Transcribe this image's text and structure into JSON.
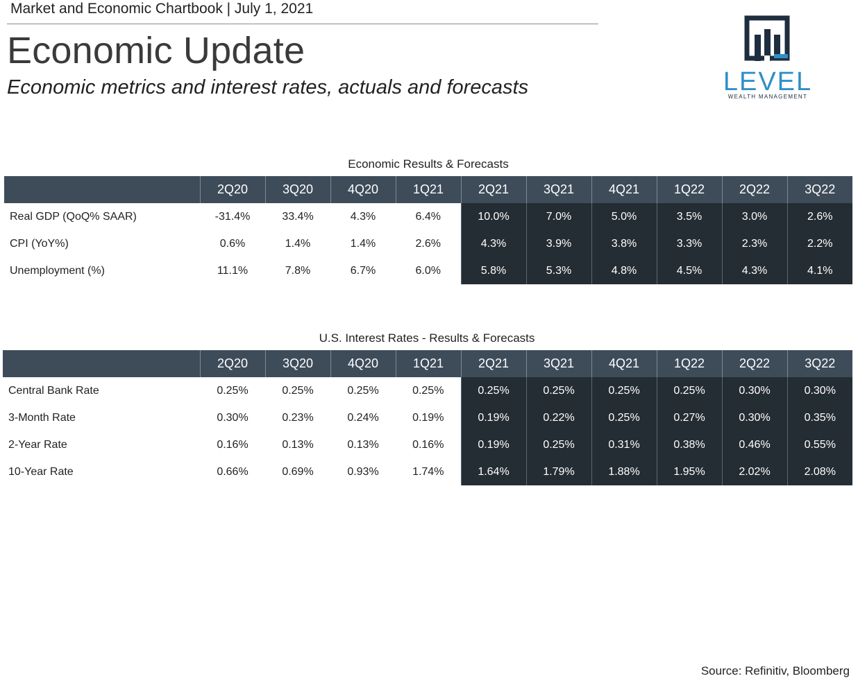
{
  "header": {
    "chartbook_label": "Market and Economic Chartbook | July 1, 2021",
    "title": "Economic Update",
    "subtitle": "Economic metrics and interest rates, actuals and forecasts"
  },
  "logo": {
    "wordmark": "LEVEL",
    "tagline": "WEALTH MANAGEMENT",
    "color": "#2f8fc7",
    "icon": "bar-chart-logo-icon"
  },
  "colors": {
    "header_bg": "#3e4c5a",
    "forecast_bg": "#252d34",
    "text": "#222222"
  },
  "tables": {
    "economic": {
      "title": "Economic Results & Forecasts",
      "columns": [
        "2Q20",
        "3Q20",
        "4Q20",
        "1Q21",
        "2Q21",
        "3Q21",
        "4Q21",
        "1Q22",
        "2Q22",
        "3Q22"
      ],
      "rows": [
        {
          "label": "Real GDP (QoQ% SAAR)",
          "values": [
            "-31.4%",
            "33.4%",
            "4.3%",
            "6.4%",
            "10.0%",
            "7.0%",
            "5.0%",
            "3.5%",
            "3.0%",
            "2.6%"
          ]
        },
        {
          "label": "CPI (YoY%)",
          "values": [
            "0.6%",
            "1.4%",
            "1.4%",
            "2.6%",
            "4.3%",
            "3.9%",
            "3.8%",
            "3.3%",
            "2.3%",
            "2.2%"
          ]
        },
        {
          "label": "Unemployment (%)",
          "values": [
            "11.1%",
            "7.8%",
            "6.7%",
            "6.0%",
            "5.8%",
            "5.3%",
            "4.8%",
            "4.5%",
            "4.3%",
            "4.1%"
          ]
        }
      ]
    },
    "rates": {
      "title": "U.S. Interest Rates - Results & Forecasts",
      "columns": [
        "2Q20",
        "3Q20",
        "4Q20",
        "1Q21",
        "2Q21",
        "3Q21",
        "4Q21",
        "1Q22",
        "2Q22",
        "3Q22"
      ],
      "rows": [
        {
          "label": "Central Bank Rate",
          "values": [
            "0.25%",
            "0.25%",
            "0.25%",
            "0.25%",
            "0.25%",
            "0.25%",
            "0.25%",
            "0.25%",
            "0.30%",
            "0.30%"
          ]
        },
        {
          "label": "3-Month Rate",
          "values": [
            "0.30%",
            "0.23%",
            "0.24%",
            "0.19%",
            "0.19%",
            "0.22%",
            "0.25%",
            "0.27%",
            "0.30%",
            "0.35%"
          ]
        },
        {
          "label": "2-Year Rate",
          "values": [
            "0.16%",
            "0.13%",
            "0.13%",
            "0.16%",
            "0.19%",
            "0.25%",
            "0.31%",
            "0.38%",
            "0.46%",
            "0.55%"
          ]
        },
        {
          "label": "10-Year Rate",
          "values": [
            "0.66%",
            "0.69%",
            "0.93%",
            "1.74%",
            "1.64%",
            "1.79%",
            "1.88%",
            "1.95%",
            "2.02%",
            "2.08%"
          ]
        }
      ]
    }
  },
  "footer": {
    "source": "Source: Refinitiv, Bloomberg"
  }
}
